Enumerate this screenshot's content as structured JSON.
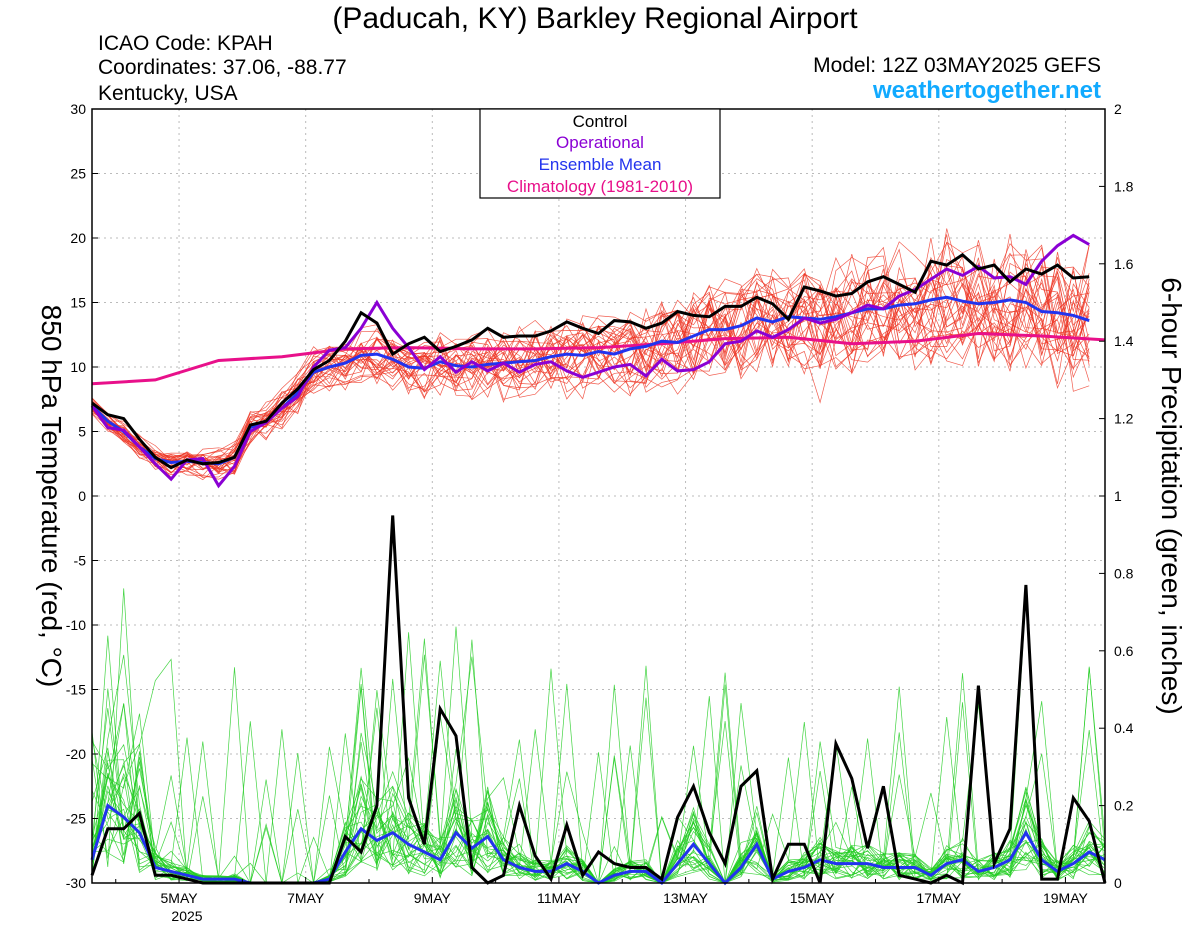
{
  "header": {
    "title": "(Paducah, KY) Barkley Regional Airport",
    "icao": "ICAO Code: KPAH",
    "coords": "Coordinates: 37.06, -88.77",
    "region": "Kentucky, USA",
    "model": "Model: 12Z 03MAY2025 GEFS",
    "site": "weathertogether.net"
  },
  "legend": {
    "items": [
      "Control",
      "Operational",
      "Ensemble Mean",
      "Climatology (1981-2010)"
    ],
    "colors": [
      "#000000",
      "#8a00d4",
      "#2233ee",
      "#e8108a"
    ]
  },
  "colors": {
    "members_temp": "#ee3322",
    "members_precip": "#22cc22",
    "site": "#11aaff"
  },
  "chart_data": {
    "type": "line",
    "ylabel": "850 hPa Temperature (red, °C)",
    "y2label": "6-hour Precipitation (green, inches)",
    "xlabel_year": "2025",
    "xticks": [
      "5MAY",
      "7MAY",
      "9MAY",
      "11MAY",
      "13MAY",
      "15MAY",
      "17MAY",
      "19MAY"
    ],
    "xlim": [
      3.625,
      19.625
    ],
    "ylim": [
      -30,
      30
    ],
    "y2lim": [
      0,
      2
    ],
    "yticks": [
      -30,
      -25,
      -20,
      -15,
      -10,
      -5,
      0,
      5,
      10,
      15,
      20,
      25,
      30
    ],
    "y2ticks": [
      0,
      0.2,
      0.4,
      0.6,
      0.8,
      1,
      1.2,
      1.4,
      1.6,
      1.8,
      2
    ],
    "grid": true,
    "temperature": {
      "control": [
        [
          3.625,
          7.2
        ],
        [
          3.875,
          6.3
        ],
        [
          4.125,
          6.0
        ],
        [
          4.375,
          4.4
        ],
        [
          4.625,
          3.0
        ],
        [
          4.875,
          2.2
        ],
        [
          5.125,
          2.8
        ],
        [
          5.375,
          2.5
        ],
        [
          5.625,
          2.6
        ],
        [
          5.875,
          3.0
        ],
        [
          6.125,
          5.5
        ],
        [
          6.375,
          5.8
        ],
        [
          6.625,
          7.2
        ],
        [
          6.875,
          8.3
        ],
        [
          7.125,
          9.8
        ],
        [
          7.375,
          10.5
        ],
        [
          7.625,
          12.0
        ],
        [
          7.875,
          14.2
        ],
        [
          8.125,
          13.4
        ],
        [
          8.375,
          11.0
        ],
        [
          8.625,
          11.8
        ],
        [
          8.875,
          12.3
        ],
        [
          9.125,
          11.2
        ],
        [
          9.375,
          11.6
        ],
        [
          9.625,
          12.1
        ],
        [
          9.875,
          13.0
        ],
        [
          10.125,
          12.3
        ],
        [
          10.375,
          12.4
        ],
        [
          10.625,
          12.4
        ],
        [
          10.875,
          12.8
        ],
        [
          11.125,
          13.5
        ],
        [
          11.375,
          13.0
        ],
        [
          11.625,
          12.6
        ],
        [
          11.875,
          13.6
        ],
        [
          12.125,
          13.5
        ],
        [
          12.375,
          13.0
        ],
        [
          12.625,
          13.4
        ],
        [
          12.875,
          14.3
        ],
        [
          13.125,
          14.0
        ],
        [
          13.375,
          13.9
        ],
        [
          13.625,
          14.7
        ],
        [
          13.875,
          14.7
        ],
        [
          14.125,
          15.4
        ],
        [
          14.375,
          14.9
        ],
        [
          14.625,
          13.7
        ],
        [
          14.875,
          16.2
        ],
        [
          15.125,
          15.9
        ],
        [
          15.375,
          15.5
        ],
        [
          15.625,
          15.7
        ],
        [
          15.875,
          16.6
        ],
        [
          16.125,
          17.0
        ],
        [
          16.375,
          16.4
        ],
        [
          16.625,
          15.8
        ],
        [
          16.875,
          18.2
        ],
        [
          17.125,
          17.9
        ],
        [
          17.375,
          18.7
        ],
        [
          17.625,
          17.6
        ],
        [
          17.875,
          17.9
        ],
        [
          18.125,
          16.6
        ],
        [
          18.375,
          17.6
        ],
        [
          18.625,
          17.2
        ],
        [
          18.875,
          17.9
        ],
        [
          19.125,
          16.9
        ],
        [
          19.375,
          17.0
        ]
      ],
      "operational": [
        [
          3.625,
          7.0
        ],
        [
          3.875,
          5.3
        ],
        [
          4.125,
          5.1
        ],
        [
          4.375,
          3.8
        ],
        [
          4.625,
          2.5
        ],
        [
          4.875,
          1.3
        ],
        [
          5.125,
          2.8
        ],
        [
          5.375,
          2.9
        ],
        [
          5.625,
          0.8
        ],
        [
          5.875,
          2.3
        ],
        [
          6.125,
          5.0
        ],
        [
          6.375,
          5.7
        ],
        [
          6.625,
          6.8
        ],
        [
          6.875,
          7.7
        ],
        [
          7.125,
          10.0
        ],
        [
          7.375,
          11.3
        ],
        [
          7.625,
          11.5
        ],
        [
          7.875,
          13.0
        ],
        [
          8.125,
          15.0
        ],
        [
          8.375,
          13.0
        ],
        [
          8.625,
          11.5
        ],
        [
          8.875,
          9.8
        ],
        [
          9.125,
          10.8
        ],
        [
          9.375,
          9.6
        ],
        [
          9.625,
          10.4
        ],
        [
          9.875,
          9.7
        ],
        [
          10.125,
          10.3
        ],
        [
          10.375,
          9.6
        ],
        [
          10.625,
          10.2
        ],
        [
          10.875,
          10.4
        ],
        [
          11.125,
          9.7
        ],
        [
          11.375,
          9.2
        ],
        [
          11.625,
          9.6
        ],
        [
          11.875,
          10.0
        ],
        [
          12.125,
          10.2
        ],
        [
          12.375,
          9.3
        ],
        [
          12.625,
          10.6
        ],
        [
          12.875,
          9.7
        ],
        [
          13.125,
          9.8
        ],
        [
          13.375,
          10.4
        ],
        [
          13.625,
          11.8
        ],
        [
          13.875,
          12.0
        ],
        [
          14.125,
          12.8
        ],
        [
          14.375,
          12.3
        ],
        [
          14.625,
          12.9
        ],
        [
          14.875,
          13.8
        ],
        [
          15.125,
          13.4
        ],
        [
          15.375,
          13.7
        ],
        [
          15.625,
          14.2
        ],
        [
          15.875,
          14.8
        ],
        [
          16.125,
          14.5
        ],
        [
          16.375,
          15.5
        ],
        [
          16.625,
          16.0
        ],
        [
          16.875,
          16.8
        ],
        [
          17.125,
          17.6
        ],
        [
          17.375,
          17.1
        ],
        [
          17.625,
          17.8
        ],
        [
          17.875,
          16.9
        ],
        [
          18.125,
          17.0
        ],
        [
          18.375,
          16.4
        ],
        [
          18.625,
          18.2
        ],
        [
          18.875,
          19.4
        ],
        [
          19.125,
          20.2
        ],
        [
          19.375,
          19.5
        ]
      ],
      "ensemble_mean": [
        [
          3.625,
          7.0
        ],
        [
          3.875,
          5.8
        ],
        [
          4.125,
          5.0
        ],
        [
          4.375,
          3.8
        ],
        [
          4.625,
          2.9
        ],
        [
          4.875,
          2.6
        ],
        [
          5.125,
          2.7
        ],
        [
          5.375,
          2.6
        ],
        [
          5.625,
          2.5
        ],
        [
          5.875,
          3.0
        ],
        [
          6.125,
          5.3
        ],
        [
          6.375,
          5.8
        ],
        [
          6.625,
          6.8
        ],
        [
          6.875,
          8.0
        ],
        [
          7.125,
          9.6
        ],
        [
          7.375,
          10.0
        ],
        [
          7.625,
          10.3
        ],
        [
          7.875,
          10.9
        ],
        [
          8.125,
          11.0
        ],
        [
          8.375,
          10.6
        ],
        [
          8.625,
          10.0
        ],
        [
          8.875,
          9.9
        ],
        [
          9.125,
          10.4
        ],
        [
          9.375,
          10.1
        ],
        [
          9.625,
          10.0
        ],
        [
          9.875,
          10.2
        ],
        [
          10.125,
          10.3
        ],
        [
          10.375,
          10.4
        ],
        [
          10.625,
          10.5
        ],
        [
          10.875,
          10.8
        ],
        [
          11.125,
          11.0
        ],
        [
          11.375,
          10.9
        ],
        [
          11.625,
          11.2
        ],
        [
          11.875,
          11.0
        ],
        [
          12.125,
          11.4
        ],
        [
          12.375,
          11.6
        ],
        [
          12.625,
          12.0
        ],
        [
          12.875,
          11.9
        ],
        [
          13.125,
          12.4
        ],
        [
          13.375,
          12.9
        ],
        [
          13.625,
          12.9
        ],
        [
          13.875,
          13.2
        ],
        [
          14.125,
          13.8
        ],
        [
          14.375,
          13.5
        ],
        [
          14.625,
          13.9
        ],
        [
          14.875,
          13.8
        ],
        [
          15.125,
          13.7
        ],
        [
          15.375,
          13.9
        ],
        [
          15.625,
          14.2
        ],
        [
          15.875,
          14.5
        ],
        [
          16.125,
          14.5
        ],
        [
          16.375,
          14.8
        ],
        [
          16.625,
          14.9
        ],
        [
          16.875,
          15.2
        ],
        [
          17.125,
          15.4
        ],
        [
          17.375,
          15.1
        ],
        [
          17.625,
          14.9
        ],
        [
          17.875,
          15.0
        ],
        [
          18.125,
          15.2
        ],
        [
          18.375,
          15.0
        ],
        [
          18.625,
          14.3
        ],
        [
          18.875,
          14.2
        ],
        [
          19.125,
          14.0
        ],
        [
          19.375,
          13.6
        ]
      ],
      "climatology": [
        [
          3.625,
          8.7
        ],
        [
          4.625,
          9.0
        ],
        [
          5.625,
          10.5
        ],
        [
          6.625,
          10.8
        ],
        [
          7.625,
          11.4
        ],
        [
          8.625,
          11.5
        ],
        [
          9.625,
          11.4
        ],
        [
          10.625,
          11.4
        ],
        [
          11.625,
          11.5
        ],
        [
          12.625,
          11.8
        ],
        [
          13.625,
          12.2
        ],
        [
          14.625,
          12.3
        ],
        [
          15.625,
          11.8
        ],
        [
          16.625,
          12.0
        ],
        [
          17.625,
          12.6
        ],
        [
          18.625,
          12.4
        ],
        [
          19.625,
          12.1
        ]
      ]
    },
    "precipitation": {
      "control": [
        [
          3.625,
          0.02
        ],
        [
          3.875,
          0.14
        ],
        [
          4.125,
          0.14
        ],
        [
          4.375,
          0.18
        ],
        [
          4.625,
          0.02
        ],
        [
          4.875,
          0.02
        ],
        [
          5.125,
          0.01
        ],
        [
          5.375,
          0.0
        ],
        [
          5.625,
          0.0
        ],
        [
          5.875,
          0.0
        ],
        [
          6.125,
          0.0
        ],
        [
          6.375,
          0.0
        ],
        [
          6.625,
          0.0
        ],
        [
          6.875,
          0.0
        ],
        [
          7.125,
          0.0
        ],
        [
          7.375,
          0.0
        ],
        [
          7.625,
          0.12
        ],
        [
          7.875,
          0.08
        ],
        [
          8.125,
          0.2
        ],
        [
          8.375,
          0.95
        ],
        [
          8.625,
          0.22
        ],
        [
          8.875,
          0.1
        ],
        [
          9.125,
          0.45
        ],
        [
          9.375,
          0.38
        ],
        [
          9.625,
          0.04
        ],
        [
          9.875,
          0.0
        ],
        [
          10.125,
          0.02
        ],
        [
          10.375,
          0.2
        ],
        [
          10.625,
          0.07
        ],
        [
          10.875,
          0.01
        ],
        [
          11.125,
          0.15
        ],
        [
          11.375,
          0.02
        ],
        [
          11.625,
          0.08
        ],
        [
          11.875,
          0.05
        ],
        [
          12.125,
          0.04
        ],
        [
          12.375,
          0.04
        ],
        [
          12.625,
          0.01
        ],
        [
          12.875,
          0.17
        ],
        [
          13.125,
          0.25
        ],
        [
          13.375,
          0.13
        ],
        [
          13.625,
          0.05
        ],
        [
          13.875,
          0.25
        ],
        [
          14.125,
          0.29
        ],
        [
          14.375,
          0.01
        ],
        [
          14.625,
          0.1
        ],
        [
          14.875,
          0.1
        ],
        [
          15.125,
          0.0
        ],
        [
          15.375,
          0.36
        ],
        [
          15.625,
          0.27
        ],
        [
          15.875,
          0.09
        ],
        [
          16.125,
          0.25
        ],
        [
          16.375,
          0.02
        ],
        [
          16.625,
          0.01
        ],
        [
          16.875,
          0.0
        ],
        [
          17.125,
          0.02
        ],
        [
          17.375,
          0.0
        ],
        [
          17.625,
          0.51
        ],
        [
          17.875,
          0.05
        ],
        [
          18.125,
          0.14
        ],
        [
          18.375,
          0.77
        ],
        [
          18.625,
          0.01
        ],
        [
          18.875,
          0.01
        ],
        [
          19.125,
          0.22
        ],
        [
          19.375,
          0.16
        ],
        [
          19.625,
          0.0
        ]
      ],
      "ensemble_mean": [
        [
          3.625,
          0.06
        ],
        [
          3.875,
          0.2
        ],
        [
          4.125,
          0.17
        ],
        [
          4.375,
          0.13
        ],
        [
          4.625,
          0.04
        ],
        [
          4.875,
          0.03
        ],
        [
          5.125,
          0.02
        ],
        [
          5.375,
          0.01
        ],
        [
          5.625,
          0.01
        ],
        [
          5.875,
          0.01
        ],
        [
          6.125,
          0.0
        ],
        [
          6.375,
          0.0
        ],
        [
          6.625,
          0.0
        ],
        [
          6.875,
          0.0
        ],
        [
          7.125,
          0.0
        ],
        [
          7.375,
          0.01
        ],
        [
          7.625,
          0.08
        ],
        [
          7.875,
          0.14
        ],
        [
          8.125,
          0.11
        ],
        [
          8.375,
          0.13
        ],
        [
          8.625,
          0.1
        ],
        [
          8.875,
          0.08
        ],
        [
          9.125,
          0.06
        ],
        [
          9.375,
          0.13
        ],
        [
          9.625,
          0.09
        ],
        [
          9.875,
          0.12
        ],
        [
          10.125,
          0.06
        ],
        [
          10.375,
          0.04
        ],
        [
          10.625,
          0.03
        ],
        [
          10.875,
          0.03
        ],
        [
          11.125,
          0.05
        ],
        [
          11.375,
          0.03
        ],
        [
          11.625,
          0.0
        ],
        [
          11.875,
          0.02
        ],
        [
          12.125,
          0.03
        ],
        [
          12.375,
          0.03
        ],
        [
          12.625,
          0.0
        ],
        [
          12.875,
          0.05
        ],
        [
          13.125,
          0.1
        ],
        [
          13.375,
          0.05
        ],
        [
          13.625,
          0.0
        ],
        [
          13.875,
          0.04
        ],
        [
          14.125,
          0.1
        ],
        [
          14.375,
          0.01
        ],
        [
          14.625,
          0.03
        ],
        [
          14.875,
          0.04
        ],
        [
          15.125,
          0.06
        ],
        [
          15.375,
          0.05
        ],
        [
          15.625,
          0.05
        ],
        [
          15.875,
          0.05
        ],
        [
          16.125,
          0.04
        ],
        [
          16.375,
          0.04
        ],
        [
          16.625,
          0.04
        ],
        [
          16.875,
          0.02
        ],
        [
          17.125,
          0.05
        ],
        [
          17.375,
          0.06
        ],
        [
          17.625,
          0.03
        ],
        [
          17.875,
          0.04
        ],
        [
          18.125,
          0.06
        ],
        [
          18.375,
          0.13
        ],
        [
          18.625,
          0.06
        ],
        [
          18.875,
          0.03
        ],
        [
          19.125,
          0.05
        ],
        [
          19.375,
          0.08
        ],
        [
          19.625,
          0.06
        ]
      ]
    }
  }
}
